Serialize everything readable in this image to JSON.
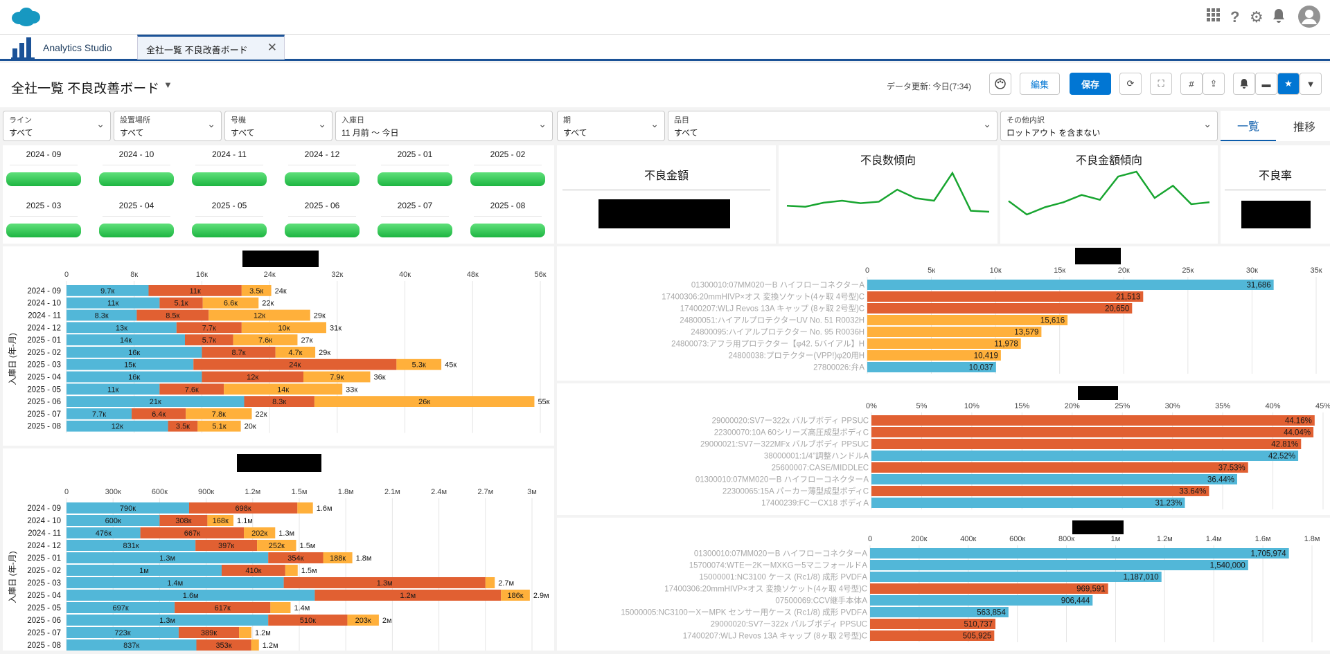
{
  "header_icons": [
    "app-grid-icon",
    "help-icon",
    "gear-icon",
    "bell-icon",
    "avatar"
  ],
  "app": {
    "name": "Analytics Studio",
    "tab_label": "全社一覧 不良改善ボード"
  },
  "page": {
    "title": "全社一覧 不良改善ボード",
    "refresh": "データ更新: 今日(7:34)",
    "edit_label": "編集",
    "save_label": "保存"
  },
  "filters": [
    {
      "label": "ライン",
      "value": "すべて"
    },
    {
      "label": "設置場所",
      "value": "すべて"
    },
    {
      "label": "号機",
      "value": "すべて"
    },
    {
      "label": "入庫日",
      "value": "11 月前 〜 今日"
    },
    {
      "label": "期",
      "value": "すべて"
    },
    {
      "label": "品目",
      "value": "すべて"
    },
    {
      "label": "その他内訳",
      "value": "ロットアウト を含まない"
    }
  ],
  "view_tabs": [
    "一覧",
    "推移"
  ],
  "months": [
    "2024 - 09",
    "2024 - 10",
    "2024 - 11",
    "2024 - 12",
    "2025 - 01",
    "2025 - 02",
    "2025 - 03",
    "2025 - 04",
    "2025 - 05",
    "2025 - 06",
    "2025 - 07",
    "2025 - 08"
  ],
  "kpis": {
    "amount": "不良金額",
    "count_trend": "不良数傾向",
    "amount_trend": "不良金額傾向",
    "rate": "不良率"
  },
  "colors": {
    "blue": "#52b7d8",
    "orange": "#e16032",
    "yellow": "#ffb03b",
    "green": "#18a530"
  },
  "chart_data": [
    {
      "type": "line",
      "title": "不良数傾向",
      "values": [
        30,
        28,
        36,
        40,
        35,
        38,
        62,
        45,
        40,
        95,
        20,
        18
      ]
    },
    {
      "type": "line",
      "title": "不良金額傾向",
      "values": [
        40,
        18,
        30,
        38,
        50,
        42,
        80,
        88,
        45,
        65,
        35,
        38
      ]
    },
    {
      "type": "bar",
      "orientation": "horizontal",
      "stacked": true,
      "ylabel": "入庫日 (年-月)",
      "categories": [
        "2024 - 09",
        "2024 - 10",
        "2024 - 11",
        "2024 - 12",
        "2025 - 01",
        "2025 - 02",
        "2025 - 03",
        "2025 - 04",
        "2025 - 05",
        "2025 - 06",
        "2025 - 07",
        "2025 - 08"
      ],
      "series": [
        {
          "values": [
            9700,
            11000,
            8300,
            13000,
            14000,
            16000,
            15000,
            16000,
            11000,
            21000,
            7700,
            12000
          ]
        },
        {
          "values": [
            11000,
            5100,
            8500,
            7700,
            5700,
            8700,
            24000,
            12000,
            7600,
            8300,
            6400,
            3500
          ]
        },
        {
          "values": [
            3500,
            6600,
            12000,
            10000,
            7600,
            4700,
            5300,
            7900,
            14000,
            26000,
            7800,
            5100
          ]
        }
      ],
      "labels": [
        [
          "9.7к",
          "11к",
          "3.5к"
        ],
        [
          "11к",
          "5.1к",
          "6.6к"
        ],
        [
          "8.3к",
          "8.5к",
          "12к"
        ],
        [
          "13к",
          "7.7к",
          "10к"
        ],
        [
          "14к",
          "5.7к",
          "7.6к"
        ],
        [
          "16к",
          "8.7к",
          "4.7к"
        ],
        [
          "15к",
          "24к",
          "5.3к"
        ],
        [
          "16к",
          "12к",
          "7.9к"
        ],
        [
          "11к",
          "7.6к",
          "14к"
        ],
        [
          "21к",
          "8.3к",
          "26к"
        ],
        [
          "7.7к",
          "6.4к",
          "7.8к"
        ],
        [
          "12к",
          "3.5к",
          "5.1к"
        ]
      ],
      "totals": [
        "24к",
        "22к",
        "29к",
        "31к",
        "27к",
        "29к",
        "45к",
        "36к",
        "33к",
        "55к",
        "22к",
        "20к"
      ],
      "xlim": [
        0,
        56000
      ],
      "ticks": [
        0,
        8000,
        16000,
        24000,
        32000,
        40000,
        48000,
        56000
      ],
      "tick_labels": [
        "0",
        "8к",
        "16к",
        "24к",
        "32к",
        "40к",
        "48к",
        "56к"
      ]
    },
    {
      "type": "bar",
      "orientation": "horizontal",
      "stacked": true,
      "ylabel": "入庫日 (年-月)",
      "categories": [
        "2024 - 09",
        "2024 - 10",
        "2024 - 11",
        "2024 - 12",
        "2025 - 01",
        "2025 - 02",
        "2025 - 03",
        "2025 - 04",
        "2025 - 05",
        "2025 - 06",
        "2025 - 07",
        "2025 - 08"
      ],
      "series": [
        {
          "values": [
            790000,
            600000,
            476000,
            831000,
            1300000,
            1000000,
            1400000,
            1600000,
            697000,
            1300000,
            723000,
            837000
          ]
        },
        {
          "values": [
            698000,
            308000,
            667000,
            397000,
            354000,
            410000,
            1300000,
            1200000,
            617000,
            510000,
            389000,
            353000
          ]
        },
        {
          "values": [
            100000,
            168000,
            202000,
            252000,
            188000,
            80000,
            60000,
            186000,
            130000,
            203000,
            80000,
            50000
          ]
        }
      ],
      "labels": [
        [
          "790к",
          "698к",
          ""
        ],
        [
          "600к",
          "308к",
          "168к"
        ],
        [
          "476к",
          "667к",
          "202к"
        ],
        [
          "831к",
          "397к",
          "252к"
        ],
        [
          "1.3м",
          "354к",
          "188к"
        ],
        [
          "1м",
          "410к",
          ""
        ],
        [
          "1.4м",
          "1.3м",
          ""
        ],
        [
          "1.6м",
          "1.2м",
          "186к"
        ],
        [
          "697к",
          "617к",
          ""
        ],
        [
          "1.3м",
          "510к",
          "203к"
        ],
        [
          "723к",
          "389к",
          ""
        ],
        [
          "837к",
          "353к",
          ""
        ]
      ],
      "totals": [
        "1.6м",
        "1.1м",
        "1.3м",
        "1.5м",
        "1.8м",
        "1.5м",
        "2.7м",
        "2.9м",
        "1.4м",
        "2м",
        "1.2м",
        "1.2м"
      ],
      "xlim": [
        0,
        3000000
      ],
      "ticks": [
        0,
        300000,
        600000,
        900000,
        1200000,
        1500000,
        1800000,
        2100000,
        2400000,
        2700000,
        3000000
      ],
      "tick_labels": [
        "0",
        "300к",
        "600к",
        "900к",
        "1.2м",
        "1.5м",
        "1.8м",
        "2.1м",
        "2.4м",
        "2.7м",
        "3м"
      ]
    },
    {
      "type": "bar",
      "orientation": "horizontal",
      "categories": [
        "01300010:07MM020ーB ハイフローコネクター",
        "17400306:20mmHIVP×オス 変換ソケット(4ヶ取 4号型)",
        "17400207:WLJ Revos 13A キャップ (8ヶ取 2号型)",
        "24800051:ハイアルプロテクターUV No. 51 R0032",
        "24800095:ハイアルプロテクター No. 95 R0036",
        "24800073:アフラ用プロテクター【φ42. 5バイアル】",
        "24800038:プロテクター(VPP!)φ20用",
        "27800026:弁"
      ],
      "codes": [
        "A",
        "C",
        "C",
        "H",
        "H",
        "H",
        "H",
        "A"
      ],
      "values": [
        31686,
        21513,
        20650,
        15616,
        13579,
        11978,
        10419,
        10037
      ],
      "labels": [
        "31,686",
        "21,513",
        "20,650",
        "15,616",
        "13,579",
        "11,978",
        "10,419",
        "10,037"
      ],
      "xlim": [
        0,
        35000
      ],
      "ticks": [
        0,
        5000,
        10000,
        15000,
        20000,
        25000,
        30000,
        35000
      ],
      "tick_labels": [
        "0",
        "5к",
        "10к",
        "15к",
        "20к",
        "25к",
        "30к",
        "35к"
      ]
    },
    {
      "type": "bar",
      "orientation": "horizontal",
      "categories": [
        "29000020:SV7ー322x バルブボディ PPSU",
        "22300070:10A 60シリーズ高圧成型ボディ",
        "29000021:SV7ー322MFx バルブボディ PPSU",
        "38000001:1/4”調整ハンドル",
        "25600007:CASE/MIDDLE",
        "01300010:07MM020ーB ハイフローコネクター",
        "22300065:15A パーカー薄型成型ボディ",
        "17400239:FCーCX18 ボディ"
      ],
      "codes": [
        "C",
        "C",
        "C",
        "A",
        "C",
        "A",
        "C",
        "A"
      ],
      "values": [
        44.16,
        44.04,
        42.81,
        42.52,
        37.53,
        36.44,
        33.64,
        31.23
      ],
      "labels": [
        "44.16%",
        "44.04%",
        "42.81%",
        "42.52%",
        "37.53%",
        "36.44%",
        "33.64%",
        "31.23%"
      ],
      "xlim": [
        0,
        45
      ],
      "ticks": [
        0,
        5,
        10,
        15,
        20,
        25,
        30,
        35,
        40,
        45
      ],
      "tick_labels": [
        "0%",
        "5%",
        "10%",
        "15%",
        "20%",
        "25%",
        "30%",
        "35%",
        "40%",
        "45%"
      ]
    },
    {
      "type": "bar",
      "orientation": "horizontal",
      "categories": [
        "01300010:07MM020ーB ハイフローコネクター",
        "15700074:WTEー2KーMXKGー5マニフォールド",
        "15000001:NC3100 ケース (Rc1/8) 成形 PVDF",
        "17400306:20mmHIVP×オス 変換ソケット(4ヶ取 4号型)",
        "07500069:CCV継手本体",
        "15000005:NC3100ーXーMPK センサー用ケース (Rc1/8) 成形 PVDF",
        "29000020:SV7ー322x バルブボディ PPSU",
        "17400207:WLJ Revos 13A キャップ (8ヶ取 2号型)"
      ],
      "codes": [
        "A",
        "A",
        "A",
        "C",
        "A",
        "A",
        "C",
        "C"
      ],
      "values": [
        1705974,
        1540000,
        1187010,
        969591,
        906444,
        563854,
        510737,
        505925
      ],
      "labels": [
        "1,705,974",
        "1,540,000",
        "1,187,010",
        "969,591",
        "906,444",
        "563,854",
        "510,737",
        "505,925"
      ],
      "xlim": [
        0,
        1800000
      ],
      "ticks": [
        0,
        200000,
        400000,
        600000,
        800000,
        1000000,
        1200000,
        1400000,
        1600000,
        1800000
      ],
      "tick_labels": [
        "0",
        "200к",
        "400к",
        "600к",
        "800к",
        "1м",
        "1.2м",
        "1.4м",
        "1.6м",
        "1.8м"
      ]
    }
  ]
}
